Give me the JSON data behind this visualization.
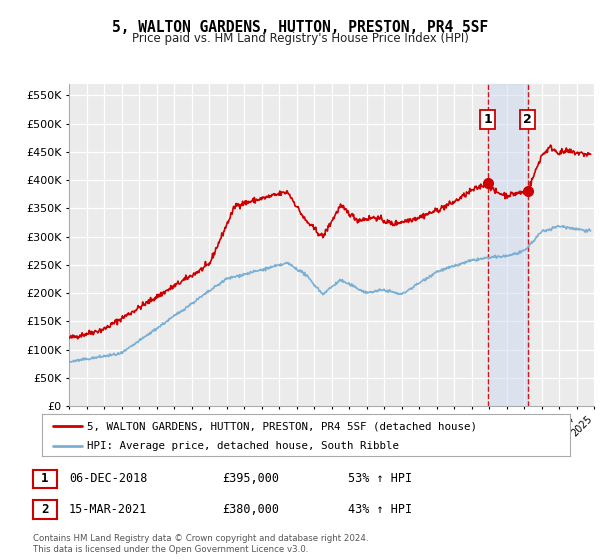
{
  "title": "5, WALTON GARDENS, HUTTON, PRESTON, PR4 5SF",
  "subtitle": "Price paid vs. HM Land Registry's House Price Index (HPI)",
  "legend_label1": "5, WALTON GARDENS, HUTTON, PRESTON, PR4 5SF (detached house)",
  "legend_label2": "HPI: Average price, detached house, South Ribble",
  "annotation1_date": "06-DEC-2018",
  "annotation1_price": "£395,000",
  "annotation1_hpi": "53% ↑ HPI",
  "annotation2_date": "15-MAR-2021",
  "annotation2_price": "£380,000",
  "annotation2_hpi": "43% ↑ HPI",
  "footer1": "Contains HM Land Registry data © Crown copyright and database right 2024.",
  "footer2": "This data is licensed under the Open Government Licence v3.0.",
  "red_color": "#cc0000",
  "blue_color": "#7bafd4",
  "plot_bg": "#ebebeb",
  "grid_color": "#ffffff",
  "shade_color": "#c8d8f0",
  "sale1_x": 2018.92,
  "sale1_y": 395000,
  "sale2_x": 2021.21,
  "sale2_y": 380000,
  "ylim_min": 0,
  "ylim_max": 570000,
  "xlim_min": 1995,
  "xlim_max": 2025,
  "yticks": [
    0,
    50000,
    100000,
    150000,
    200000,
    250000,
    300000,
    350000,
    400000,
    450000,
    500000,
    550000
  ]
}
